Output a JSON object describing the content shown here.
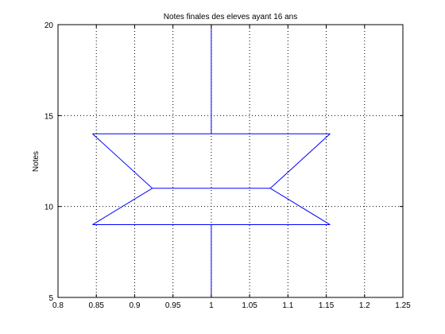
{
  "chart_data": {
    "type": "line",
    "title": "Notes finales des eleves ayant 16 ans",
    "xlabel": "",
    "ylabel": "Notes",
    "xlim": [
      0.8,
      1.25
    ],
    "ylim": [
      5,
      20
    ],
    "xticks": [
      "0.8",
      "0.85",
      "0.9",
      "0.95",
      "1",
      "1.05",
      "1.1",
      "1.15",
      "1.2",
      "1.25"
    ],
    "yticks": [
      "5",
      "10",
      "15",
      "20"
    ],
    "grid": true,
    "line_color": "#0000ff",
    "series": [
      {
        "x": [
          1,
          1
        ],
        "y": [
          14,
          20
        ]
      },
      {
        "x": [
          1,
          1
        ],
        "y": [
          5,
          9
        ]
      },
      {
        "x": [
          0.845,
          1.155
        ],
        "y": [
          14,
          14
        ]
      },
      {
        "x": [
          0.845,
          1.155
        ],
        "y": [
          9,
          9
        ]
      },
      {
        "x": [
          0.923,
          1.077
        ],
        "y": [
          11,
          11
        ]
      },
      {
        "x": [
          0.845,
          0.923,
          0.845
        ],
        "y": [
          14,
          11,
          9
        ]
      },
      {
        "x": [
          1.155,
          1.077,
          1.155
        ],
        "y": [
          14,
          11,
          9
        ]
      }
    ]
  }
}
